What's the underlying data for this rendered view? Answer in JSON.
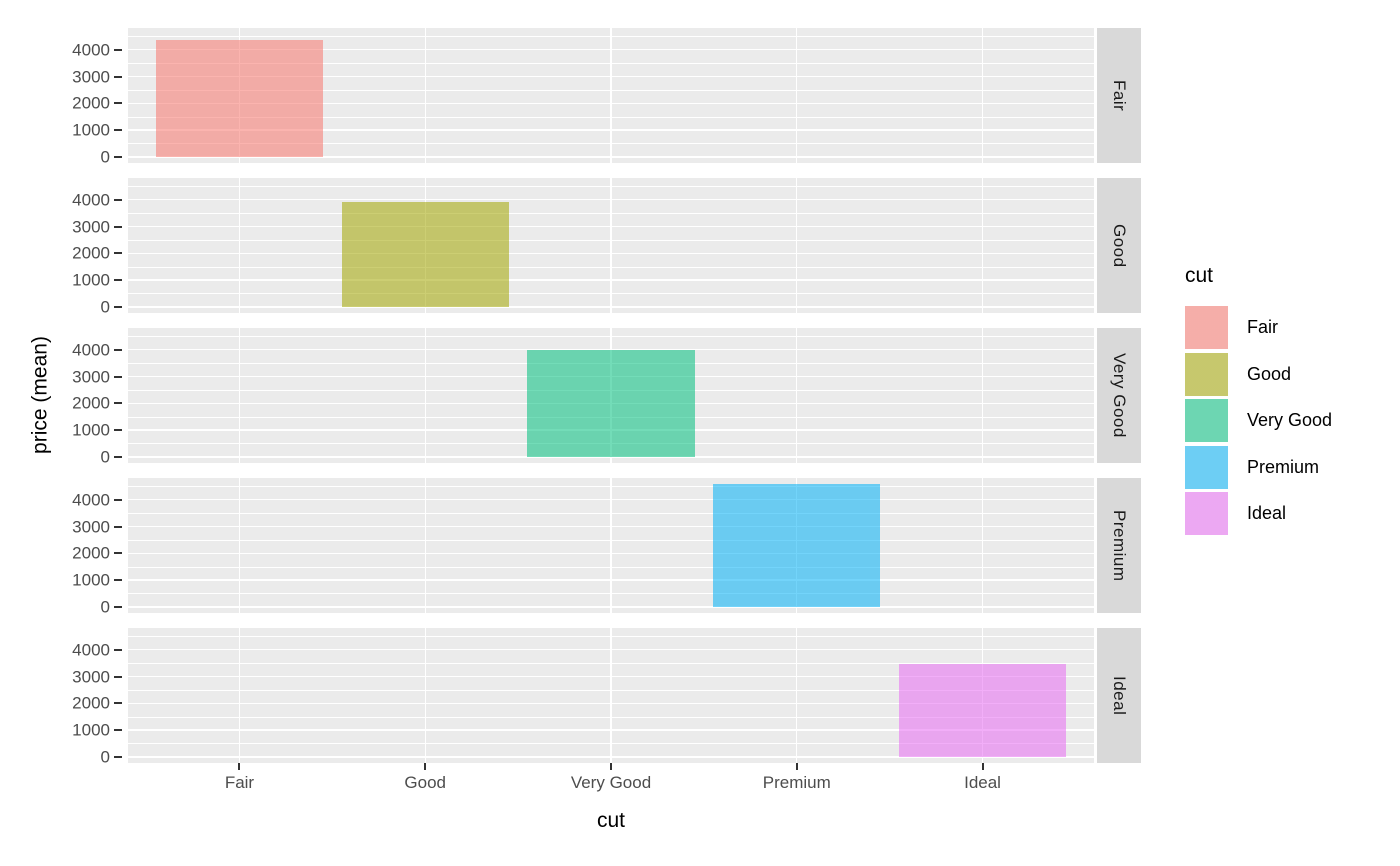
{
  "chart_data": {
    "type": "bar",
    "title": "",
    "xlabel": "cut",
    "ylabel": "price (mean)",
    "categories": [
      "Fair",
      "Good",
      "Very Good",
      "Premium",
      "Ideal"
    ],
    "values": [
      4358.76,
      3928.86,
      3981.76,
      4584.26,
      3457.54
    ],
    "series_note": "mean diamond price by cut; one bar per facet row",
    "facets": {
      "variable": "cut",
      "labels": [
        "Fair",
        "Good",
        "Very Good",
        "Premium",
        "Ideal"
      ],
      "strip_position": "right"
    },
    "y_ticks": [
      0,
      1000,
      2000,
      3000,
      4000
    ],
    "y_minor_ticks": [
      500,
      1500,
      2500,
      3500,
      4500
    ],
    "ylim": [
      -230,
      4815
    ],
    "grid": true,
    "bar_alpha": 0.55,
    "colors": {
      "Fair": "#F8766D",
      "Good": "#A3A500",
      "Very Good": "#00BF7D",
      "Premium": "#00B0F6",
      "Ideal": "#E76BF3"
    },
    "panel_bg": "#EBEBEB",
    "strip_bg": "#D9D9D9",
    "tick_label_color": "#4D4D4D",
    "legend": {
      "title": "cut",
      "position": "right",
      "entries": [
        {
          "label": "Fair",
          "color": "#F8766D"
        },
        {
          "label": "Good",
          "color": "#A3A500"
        },
        {
          "label": "Very Good",
          "color": "#00BF7D"
        },
        {
          "label": "Premium",
          "color": "#00B0F6"
        },
        {
          "label": "Ideal",
          "color": "#E76BF3"
        }
      ]
    }
  }
}
